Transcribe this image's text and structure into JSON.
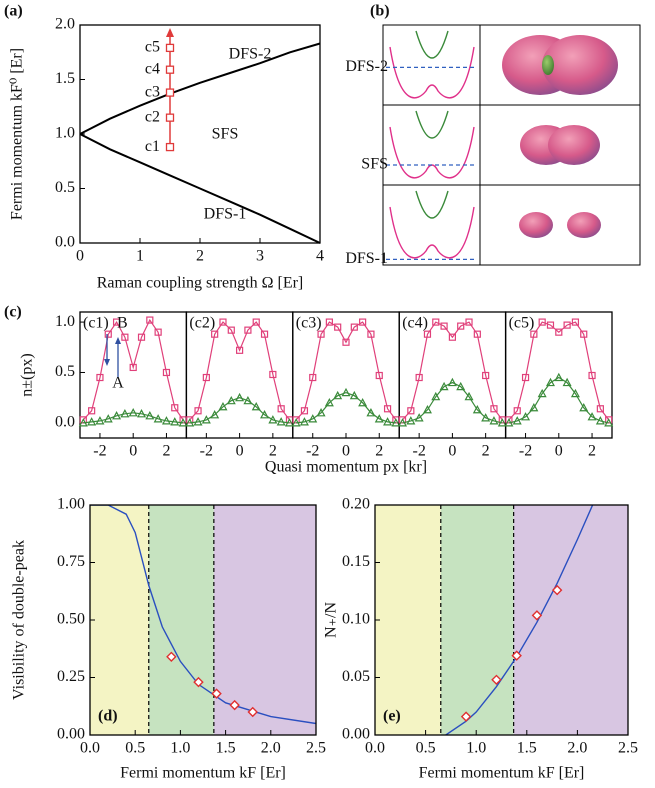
{
  "chart_data": [
    {
      "type": "line",
      "panel_label": "(a)",
      "xlabel": "Raman coupling strength Ω [Er]",
      "ylabel": "Fermi momentum kF⁰ [Er]",
      "xlim": [
        0,
        4
      ],
      "ylim": [
        0,
        2
      ],
      "xticks": [
        0,
        1,
        2,
        3,
        4
      ],
      "yticks": [
        {
          "value": 0,
          "label": "0.0"
        },
        {
          "value": 0.5,
          "label": "0.5"
        },
        {
          "value": 1,
          "label": "1.0"
        },
        {
          "value": 1.5,
          "label": "1.5"
        },
        {
          "value": 2,
          "label": "2.0"
        }
      ],
      "x": [
        0,
        0.5,
        1,
        1.5,
        2,
        2.5,
        3,
        3.5,
        4
      ],
      "series": [
        {
          "color": "#000000",
          "values": [
            1,
            1.14,
            1.26,
            1.37,
            1.47,
            1.56,
            1.65,
            1.75,
            1.83
          ]
        },
        {
          "color": "#000000",
          "values": [
            1,
            0.86,
            0.74,
            0.62,
            0.5,
            0.38,
            0.26,
            0.13,
            0
          ]
        }
      ],
      "region_labels": [
        "DFS-2",
        "SFS",
        "DFS-1"
      ],
      "points": {
        "color": "#e03a3a",
        "labels": [
          "c1",
          "c2",
          "c3",
          "c4",
          "c5"
        ],
        "x": [
          1.5,
          1.5,
          1.5,
          1.5,
          1.5
        ],
        "values": [
          0.88,
          1.15,
          1.38,
          1.59,
          1.79
        ]
      }
    },
    {
      "type": "diagram",
      "panel_label": "(b)",
      "rows": [
        "DFS-2",
        "SFS",
        "DFS-1"
      ]
    },
    {
      "type": "facets",
      "panel_label": "(c)",
      "xlabel": "Quasi momentum px [kr]",
      "ylabel": "n±(px)",
      "xlim": [
        -3.2,
        3.2
      ],
      "ylim": [
        -0.15,
        1.1
      ],
      "xticks": [
        -2,
        0,
        2
      ],
      "yticks": [
        {
          "value": 0,
          "label": "0.0"
        },
        {
          "value": 0.5,
          "label": "0.5"
        },
        {
          "value": 1,
          "label": "1.0"
        }
      ],
      "annotations": [
        "B",
        "A"
      ],
      "x": [
        -3,
        -2.5,
        -2,
        -1.5,
        -1,
        -0.5,
        0,
        0.5,
        1,
        1.5,
        2,
        2.5,
        3
      ],
      "panels": [
        {
          "title": "(c1)",
          "series": [
            {
              "color": "#e0407a",
              "values": [
                0.03,
                0.12,
                0.45,
                0.88,
                1.0,
                0.85,
                0.55,
                0.85,
                1.02,
                0.9,
                0.5,
                0.15,
                0.03
              ]
            },
            {
              "color": "#3a8a3a",
              "values": [
                0,
                0.01,
                0.02,
                0.04,
                0.07,
                0.09,
                0.1,
                0.09,
                0.07,
                0.04,
                0.02,
                0.01,
                0
              ]
            }
          ]
        },
        {
          "title": "(c2)",
          "series": [
            {
              "color": "#e0407a",
              "values": [
                0.03,
                0.12,
                0.45,
                0.88,
                1.0,
                0.92,
                0.72,
                0.92,
                1.0,
                0.88,
                0.48,
                0.14,
                0.03
              ]
            },
            {
              "color": "#3a8a3a",
              "values": [
                0,
                0.01,
                0.03,
                0.08,
                0.16,
                0.22,
                0.25,
                0.22,
                0.16,
                0.08,
                0.03,
                0.01,
                0
              ]
            }
          ]
        },
        {
          "title": "(c3)",
          "series": [
            {
              "color": "#e0407a",
              "values": [
                0.03,
                0.12,
                0.45,
                0.88,
                1.0,
                0.95,
                0.8,
                0.95,
                1.0,
                0.88,
                0.47,
                0.14,
                0.03
              ]
            },
            {
              "color": "#3a8a3a",
              "values": [
                0,
                0.01,
                0.04,
                0.1,
                0.2,
                0.27,
                0.3,
                0.27,
                0.2,
                0.1,
                0.04,
                0.01,
                0
              ]
            }
          ]
        },
        {
          "title": "(c4)",
          "series": [
            {
              "color": "#e0407a",
              "values": [
                0.03,
                0.12,
                0.45,
                0.88,
                1.0,
                0.96,
                0.85,
                0.96,
                1.0,
                0.88,
                0.47,
                0.14,
                0.03
              ]
            },
            {
              "color": "#3a8a3a",
              "values": [
                0,
                0.02,
                0.05,
                0.13,
                0.26,
                0.36,
                0.4,
                0.36,
                0.26,
                0.13,
                0.05,
                0.02,
                0
              ]
            }
          ]
        },
        {
          "title": "(c5)",
          "series": [
            {
              "color": "#e0407a",
              "values": [
                0.03,
                0.12,
                0.45,
                0.88,
                1.0,
                0.97,
                0.9,
                0.97,
                1.0,
                0.88,
                0.47,
                0.14,
                0.03
              ]
            },
            {
              "color": "#3a8a3a",
              "values": [
                0,
                0.02,
                0.06,
                0.15,
                0.29,
                0.4,
                0.45,
                0.4,
                0.29,
                0.15,
                0.06,
                0.02,
                0
              ]
            }
          ]
        }
      ]
    },
    {
      "type": "scatter",
      "panel_label": "(d)",
      "xlabel": "Fermi momentum kF [Er]",
      "ylabel": "Visibility of double-peak",
      "xlim": [
        0,
        2.5
      ],
      "ylim": [
        0,
        1
      ],
      "xticks": [
        {
          "value": 0,
          "label": "0.0"
        },
        {
          "value": 0.5,
          "label": "0.5"
        },
        {
          "value": 1,
          "label": "1.0"
        },
        {
          "value": 1.5,
          "label": "1.5"
        },
        {
          "value": 2,
          "label": "2.0"
        },
        {
          "value": 2.5,
          "label": "2.5"
        }
      ],
      "yticks": [
        {
          "value": 0,
          "label": "0.00"
        },
        {
          "value": 0.25,
          "label": "0.25"
        },
        {
          "value": 0.5,
          "label": "0.50"
        },
        {
          "value": 0.75,
          "label": "0.75"
        },
        {
          "value": 1,
          "label": "1.00"
        }
      ],
      "boundaries": [
        0.65,
        1.37
      ],
      "region_colors": [
        "#f4f4c4",
        "#c6e3c0",
        "#d8c6e2"
      ],
      "curve": {
        "color": "#2a4fc0",
        "x": [
          0,
          0.2,
          0.4,
          0.5,
          0.65,
          0.8,
          1.0,
          1.2,
          1.5,
          2.0,
          2.5
        ],
        "values": [
          1,
          1,
          0.96,
          0.88,
          0.65,
          0.47,
          0.32,
          0.22,
          0.14,
          0.08,
          0.05
        ]
      },
      "points": {
        "color": "#e03030",
        "x": [
          0.9,
          1.2,
          1.4,
          1.6,
          1.8
        ],
        "values": [
          0.34,
          0.23,
          0.18,
          0.13,
          0.1
        ]
      }
    },
    {
      "type": "scatter",
      "panel_label": "(e)",
      "xlabel": "Fermi momentum kF [Er]",
      "ylabel": "N₊/N",
      "xlim": [
        0,
        2.5
      ],
      "ylim": [
        0,
        0.2
      ],
      "xticks": [
        {
          "value": 0,
          "label": "0.0"
        },
        {
          "value": 0.5,
          "label": "0.5"
        },
        {
          "value": 1,
          "label": "1.0"
        },
        {
          "value": 1.5,
          "label": "1.5"
        },
        {
          "value": 2,
          "label": "2.0"
        },
        {
          "value": 2.5,
          "label": "2.5"
        }
      ],
      "yticks": [
        {
          "value": 0,
          "label": "0.00"
        },
        {
          "value": 0.05,
          "label": "0.05"
        },
        {
          "value": 0.1,
          "label": "0.10"
        },
        {
          "value": 0.15,
          "label": "0.15"
        },
        {
          "value": 0.2,
          "label": "0.20"
        }
      ],
      "boundaries": [
        0.65,
        1.37
      ],
      "region_colors": [
        "#f4f4c4",
        "#c6e3c0",
        "#d8c6e2"
      ],
      "curve": {
        "color": "#2a4fc0",
        "x": [
          0.7,
          0.9,
          1.0,
          1.2,
          1.4,
          1.6,
          1.8,
          2.0,
          2.15
        ],
        "values": [
          0,
          0.012,
          0.02,
          0.042,
          0.068,
          0.098,
          0.132,
          0.17,
          0.2
        ]
      },
      "points": {
        "color": "#e03030",
        "x": [
          0.9,
          1.2,
          1.4,
          1.6,
          1.8
        ],
        "values": [
          0.016,
          0.048,
          0.069,
          0.104,
          0.126
        ]
      }
    }
  ]
}
